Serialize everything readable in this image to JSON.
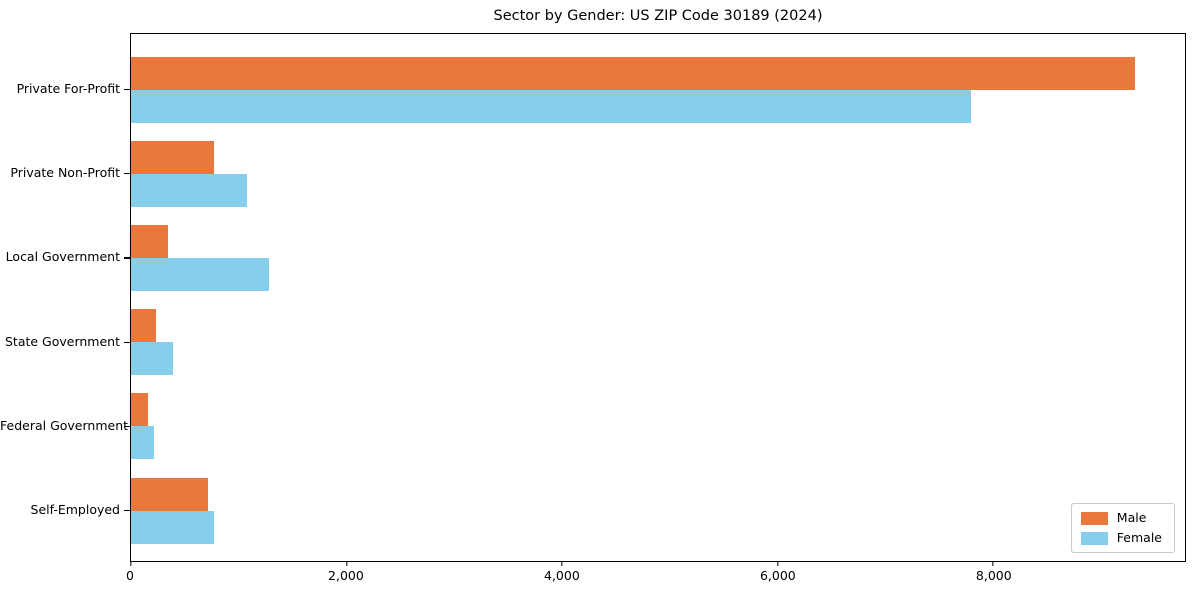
{
  "title": "Sector by Gender: US ZIP Code 30189 (2024)",
  "colors": {
    "male": "#E8783C",
    "female": "#87CEEB",
    "axis": "#000000",
    "legend_border": "#C9C9C9",
    "background": "#FFFFFF"
  },
  "legend": {
    "position": "lower right",
    "items": [
      {
        "label": "Male"
      },
      {
        "label": "Female"
      }
    ]
  },
  "chart_data": {
    "type": "bar",
    "orientation": "horizontal",
    "title": "Sector by Gender: US ZIP Code 30189 (2024)",
    "categories": [
      "Private For-Profit",
      "Private Non-Profit",
      "Local Government",
      "State Government",
      "Federal Government",
      "Self-Employed"
    ],
    "series": [
      {
        "name": "Male",
        "color": "#E8783C",
        "values": [
          9320,
          770,
          340,
          230,
          160,
          710
        ]
      },
      {
        "name": "Female",
        "color": "#87CEEB",
        "values": [
          7790,
          1080,
          1280,
          390,
          210,
          770
        ]
      }
    ],
    "xlabel": "",
    "ylabel": "",
    "xlim": [
      0,
      9780
    ],
    "xticks": [
      0,
      2000,
      4000,
      6000,
      8000
    ],
    "xtick_labels": [
      "0",
      "2,000",
      "4,000",
      "6,000",
      "8,000"
    ],
    "grid": false,
    "legend_position": "lower right"
  }
}
